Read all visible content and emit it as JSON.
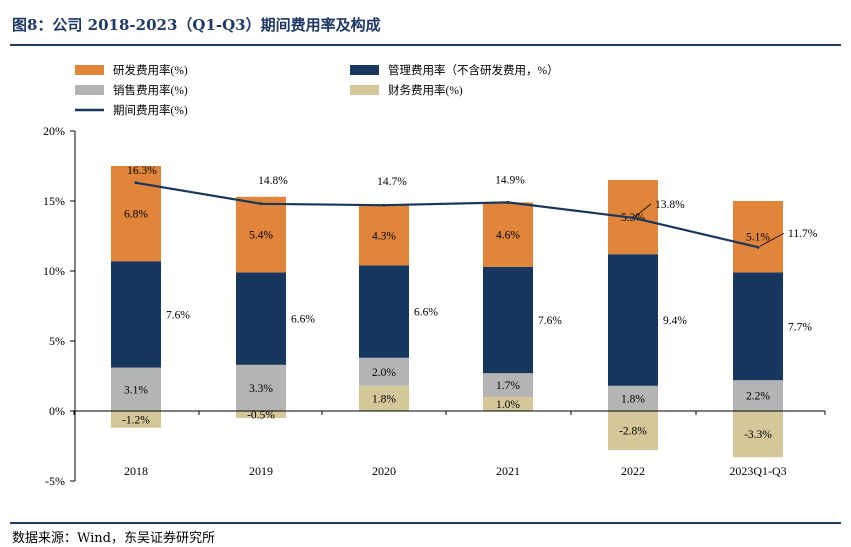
{
  "figure": {
    "title": "图8：公司 2018-2023（Q1-Q3）期间费用率及构成",
    "source": "数据来源：Wind，东吴证券研究所"
  },
  "chart_data": {
    "type": "bar",
    "stacked": true,
    "categories": [
      "2018",
      "2019",
      "2020",
      "2021",
      "2022",
      "2023Q1-Q3"
    ],
    "ylim": [
      -5,
      20
    ],
    "yticks": [
      -5,
      0,
      5,
      10,
      15,
      20
    ],
    "ytick_labels": [
      "-5%",
      "0%",
      "5%",
      "10%",
      "15%",
      "20%"
    ],
    "legend_position": "top",
    "grid": false,
    "series": [
      {
        "name": "财务费用率(%)",
        "color": "#d4c89a",
        "kind": "bar",
        "values": [
          -1.2,
          -0.5,
          1.8,
          1.0,
          -2.8,
          -3.3
        ],
        "labels": [
          "-1.2%",
          "-0.5%",
          "1.8%",
          "1.0%",
          "-2.8%",
          "-3.3%"
        ]
      },
      {
        "name": "销售费用率(%)",
        "color": "#b4b4b4",
        "kind": "bar",
        "values": [
          3.1,
          3.3,
          2.0,
          1.7,
          1.8,
          2.2
        ],
        "labels": [
          "3.1%",
          "3.3%",
          "2.0%",
          "1.7%",
          "1.8%",
          "2.2%"
        ]
      },
      {
        "name": "管理费用率（不含研发费用，%）",
        "color": "#17375e",
        "kind": "bar",
        "values": [
          7.6,
          6.6,
          6.6,
          7.6,
          9.4,
          7.7
        ],
        "labels": [
          "7.6%",
          "6.6%",
          "6.6%",
          "7.6%",
          "9.4%",
          "7.7%"
        ]
      },
      {
        "name": "研发费用率(%)",
        "color": "#e0853a",
        "kind": "bar",
        "values": [
          6.8,
          5.4,
          4.3,
          4.6,
          5.3,
          5.1
        ],
        "labels": [
          "6.8%",
          "5.4%",
          "4.3%",
          "4.6%",
          "5.3%",
          "5.1%"
        ]
      },
      {
        "name": "期间费用率(%)",
        "color": "#17375e",
        "kind": "line",
        "values": [
          16.3,
          14.8,
          14.7,
          14.9,
          13.8,
          11.7
        ],
        "labels": [
          "16.3%",
          "14.8%",
          "14.7%",
          "14.9%",
          "13.8%",
          "11.7%"
        ]
      }
    ],
    "legend": [
      {
        "label": "研发费用率(%)",
        "color": "#e0853a",
        "symbol": "rect"
      },
      {
        "label": "管理费用率（不含研发费用，%）",
        "color": "#17375e",
        "symbol": "rect"
      },
      {
        "label": "销售费用率(%)",
        "color": "#b4b4b4",
        "symbol": "rect"
      },
      {
        "label": "财务费用率(%)",
        "color": "#d4c89a",
        "symbol": "rect"
      },
      {
        "label": "期间费用率(%)",
        "color": "#17375e",
        "symbol": "line"
      }
    ]
  }
}
